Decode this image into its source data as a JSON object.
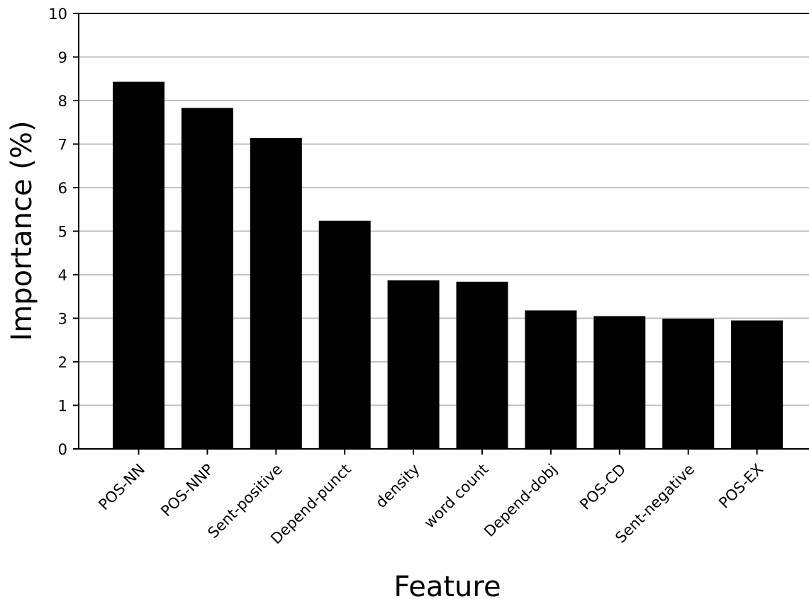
{
  "chart_data": {
    "type": "bar",
    "title": "",
    "xlabel": "Feature",
    "ylabel": "Importance (%)",
    "categories": [
      "POS-NN",
      "POS-NNP",
      "Sent-positive",
      "Depend-punct",
      "density",
      "word count",
      "Depend-dobj",
      "POS-CD",
      "Sent-negative",
      "POS-EX"
    ],
    "values": [
      8.43,
      7.83,
      7.14,
      5.24,
      3.87,
      3.84,
      3.18,
      3.05,
      2.99,
      2.95
    ],
    "ylim": [
      0,
      10
    ],
    "yticks": [
      0,
      1,
      2,
      3,
      4,
      5,
      6,
      7,
      8,
      9,
      10
    ],
    "grid": "horizontal",
    "legend": "none",
    "colors": {
      "bar": "#000000",
      "grid": "#c0c0c0",
      "axis": "#000000",
      "background": "#ffffff"
    }
  }
}
